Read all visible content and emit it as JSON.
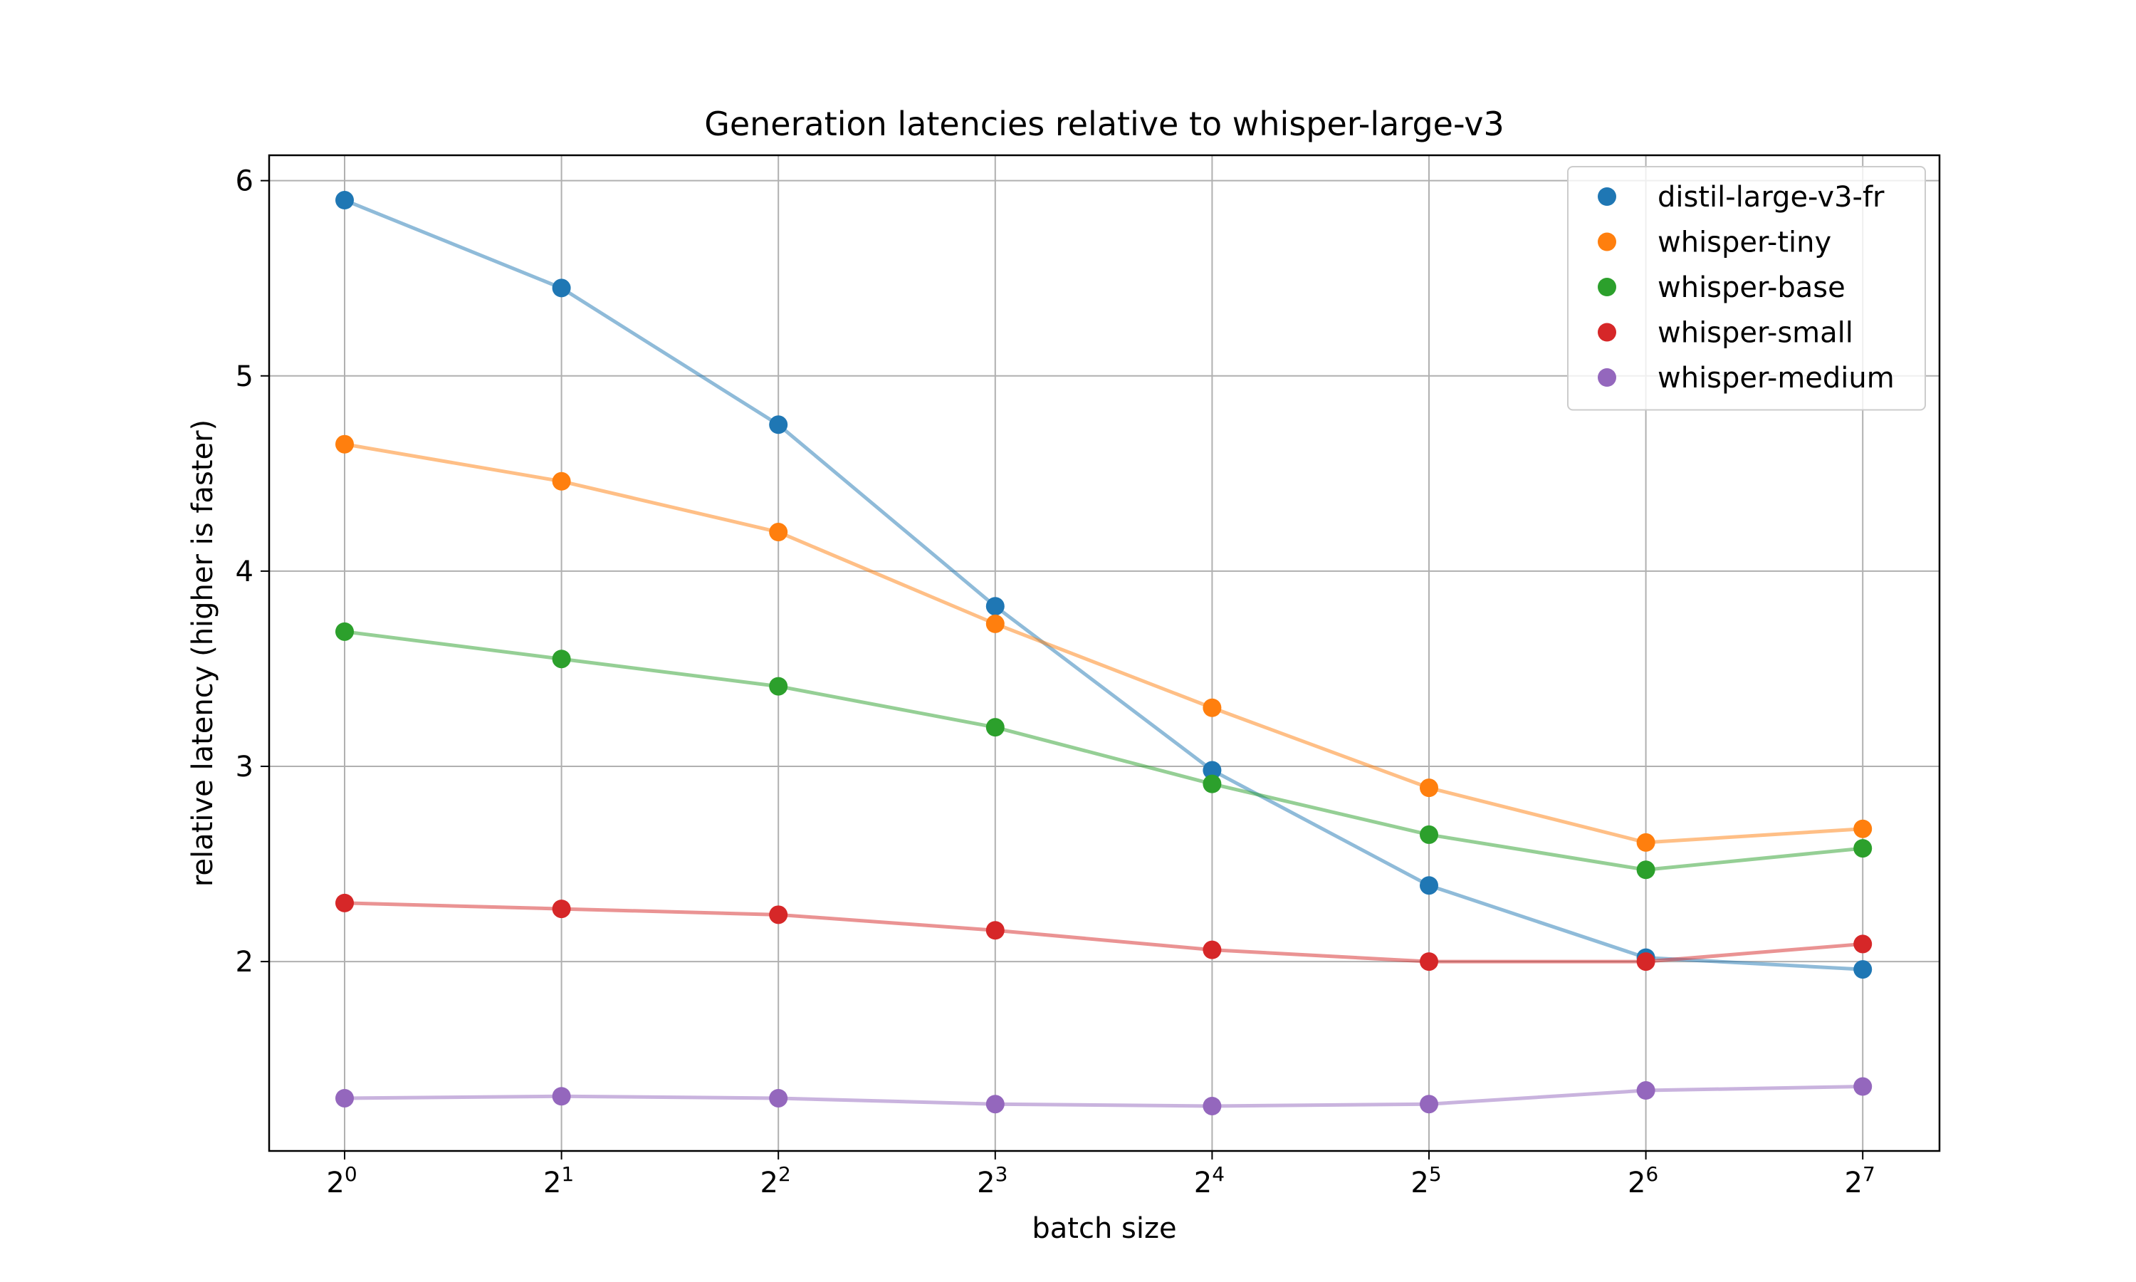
{
  "chart_data": {
    "type": "scatter",
    "title": "Generation latencies relative to whisper-large-v3",
    "xlabel": "batch size",
    "ylabel": "relative latency (higher is faster)",
    "xscale": "log2",
    "x": [
      1,
      2,
      4,
      8,
      16,
      32,
      64,
      128
    ],
    "x_tick_base": "2",
    "x_tick_exponents": [
      "0",
      "1",
      "2",
      "3",
      "4",
      "5",
      "6",
      "7"
    ],
    "yticks": [
      "2",
      "3",
      "4",
      "5",
      "6"
    ],
    "ylim": [
      1.03,
      6.13
    ],
    "grid": true,
    "legend_position": "top-right",
    "series": [
      {
        "name": "distil-large-v3-fr",
        "color": "#1f77b4",
        "values": [
          5.9,
          5.45,
          4.75,
          3.82,
          2.98,
          2.39,
          2.02,
          1.96
        ]
      },
      {
        "name": "whisper-tiny",
        "color": "#ff7f0e",
        "values": [
          4.65,
          4.46,
          4.2,
          3.73,
          3.3,
          2.89,
          2.61,
          2.68
        ]
      },
      {
        "name": "whisper-base",
        "color": "#2ca02c",
        "values": [
          3.69,
          3.55,
          3.41,
          3.2,
          2.91,
          2.65,
          2.47,
          2.58
        ]
      },
      {
        "name": "whisper-small",
        "color": "#d62728",
        "values": [
          2.3,
          2.27,
          2.24,
          2.16,
          2.06,
          2.0,
          2.0,
          2.09
        ]
      },
      {
        "name": "whisper-medium",
        "color": "#9467bd",
        "values": [
          1.3,
          1.31,
          1.3,
          1.27,
          1.26,
          1.27,
          1.34,
          1.36
        ]
      }
    ]
  }
}
